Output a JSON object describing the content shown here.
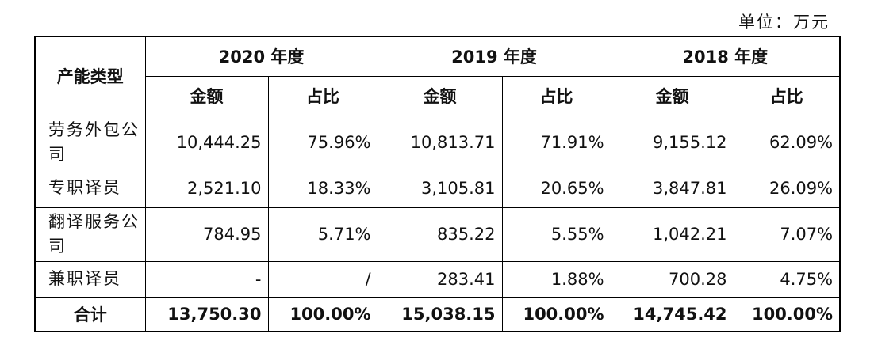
{
  "unit_label": "单位：万元",
  "table": {
    "corner_header": "产能类型",
    "years": [
      "2020 年度",
      "2019 年度",
      "2018 年度"
    ],
    "sub_headers": [
      "金额",
      "占比"
    ],
    "rows": [
      {
        "category": "劳务外包公司",
        "values": [
          "10,444.25",
          "75.96%",
          "10,813.71",
          "71.91%",
          "9,155.12",
          "62.09%"
        ]
      },
      {
        "category": "专职译员",
        "values": [
          "2,521.10",
          "18.33%",
          "3,105.81",
          "20.65%",
          "3,847.81",
          "26.09%"
        ]
      },
      {
        "category": "翻译服务公司",
        "values": [
          "784.95",
          "5.71%",
          "835.22",
          "5.55%",
          "1,042.21",
          "7.07%"
        ]
      },
      {
        "category": "兼职译员",
        "values": [
          "-",
          "/",
          "283.41",
          "1.88%",
          "700.28",
          "4.75%"
        ]
      }
    ],
    "total": {
      "label": "合计",
      "values": [
        "13,750.30",
        "100.00%",
        "15,038.15",
        "100.00%",
        "14,745.42",
        "100.00%"
      ]
    }
  }
}
